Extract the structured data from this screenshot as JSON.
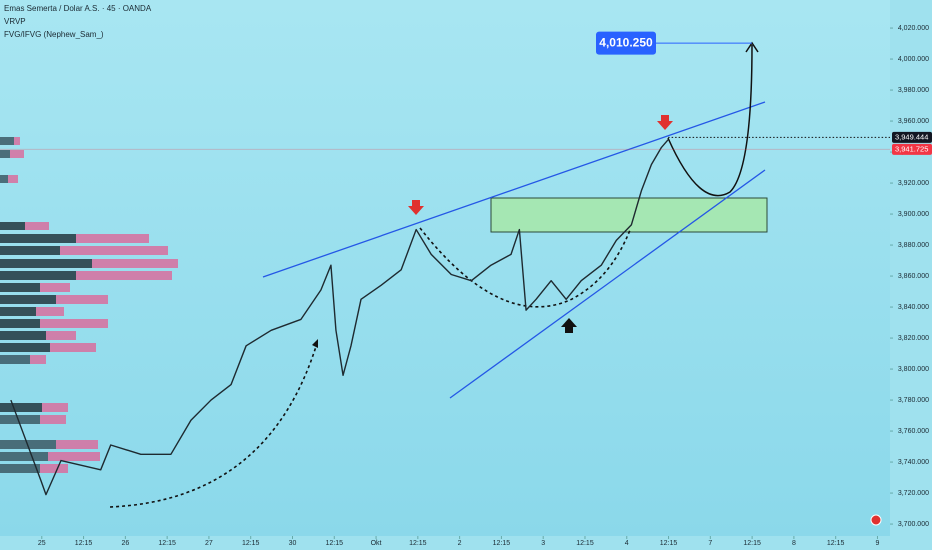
{
  "chart_data": {
    "type": "line",
    "header": {
      "symbol": "Emas Semerta / Dolar A.S. · 45 · OANDA",
      "indicator_1": "VRVP",
      "indicator_2": "FVG/IFVG (Nephew_Sam_)"
    },
    "x": [
      -0.74,
      -0.02,
      0.1,
      0.46,
      1.41,
      1.65,
      2.37,
      3.09,
      3.57,
      4.05,
      4.53,
      4.89,
      5.49,
      6.2,
      6.68,
      6.92,
      7.04,
      7.21,
      7.4,
      7.64,
      8.12,
      8.6,
      8.96,
      9.32,
      9.8,
      10.28,
      10.75,
      11.23,
      11.43,
      11.59,
      11.83,
      12.19,
      12.55,
      12.91,
      13.39,
      13.75,
      14.11,
      14.35,
      14.59,
      14.83,
      14.99
    ],
    "series": [
      {
        "color": "#1e2a30",
        "values": [
          3780,
          3728,
          3719,
          3741,
          3735,
          3751,
          3745,
          3745,
          3767,
          3780,
          3790,
          3815,
          3825,
          3832,
          3851,
          3867,
          3825,
          3796,
          3815,
          3845,
          3854,
          3864,
          3890,
          3874,
          3861,
          3857,
          3867,
          3874,
          3890,
          3838,
          3845,
          3857,
          3845,
          3857,
          3867,
          3883,
          3893,
          3915,
          3932,
          3943,
          3948
        ]
      }
    ],
    "xlim": [
      -1,
      20.3
    ],
    "xticks": [
      {
        "value": 0,
        "label": "25"
      },
      {
        "value": 1,
        "label": "12:15"
      },
      {
        "value": 2,
        "label": "26"
      },
      {
        "value": 3,
        "label": "12:15"
      },
      {
        "value": 4,
        "label": "27"
      },
      {
        "value": 5,
        "label": "12:15"
      },
      {
        "value": 6,
        "label": "30"
      },
      {
        "value": 7,
        "label": "12:15"
      },
      {
        "value": 8,
        "label": "Okt"
      },
      {
        "value": 9,
        "label": "12:15"
      },
      {
        "value": 10,
        "label": "2"
      },
      {
        "value": 11,
        "label": "12:15"
      },
      {
        "value": 12,
        "label": "3"
      },
      {
        "value": 13,
        "label": "12:15"
      },
      {
        "value": 14,
        "label": "4"
      },
      {
        "value": 15,
        "label": "12:15"
      },
      {
        "value": 16,
        "label": "7"
      },
      {
        "value": 17,
        "label": "12:15"
      },
      {
        "value": 18,
        "label": "8"
      },
      {
        "value": 19,
        "label": "12:15"
      },
      {
        "value": 20,
        "label": "9"
      }
    ],
    "ylim": [
      3692.3,
      4038.1
    ],
    "yticks": [
      {
        "value": 3700,
        "label": "3,700.000"
      },
      {
        "value": 3720,
        "label": "3,720.000"
      },
      {
        "value": 3740,
        "label": "3,740.000"
      },
      {
        "value": 3760,
        "label": "3,760.000"
      },
      {
        "value": 3780,
        "label": "3,780.000"
      },
      {
        "value": 3800,
        "label": "3,800.000"
      },
      {
        "value": 3820,
        "label": "3,820.000"
      },
      {
        "value": 3840,
        "label": "3,840.000"
      },
      {
        "value": 3860,
        "label": "3,860.000"
      },
      {
        "value": 3880,
        "label": "3,880.000"
      },
      {
        "value": 3900,
        "label": "3,900.000"
      },
      {
        "value": 3920,
        "label": "3,920.000"
      },
      {
        "value": 3940,
        "label": "3,940.000"
      },
      {
        "value": 3960,
        "label": "3,960.000"
      },
      {
        "value": 3980,
        "label": "3,980.000"
      },
      {
        "value": 4000,
        "label": "4,000.000"
      },
      {
        "value": 4020,
        "label": "4,020.000"
      }
    ],
    "price_markers": [
      {
        "value": 3949.444,
        "label": "3,949.444",
        "color": "#131722"
      },
      {
        "value": 3941.725,
        "label": "3,941.725",
        "color": "#f23645"
      }
    ],
    "target": {
      "value": 4010.25,
      "label": "4,010.250",
      "color": "#2962ff"
    }
  }
}
